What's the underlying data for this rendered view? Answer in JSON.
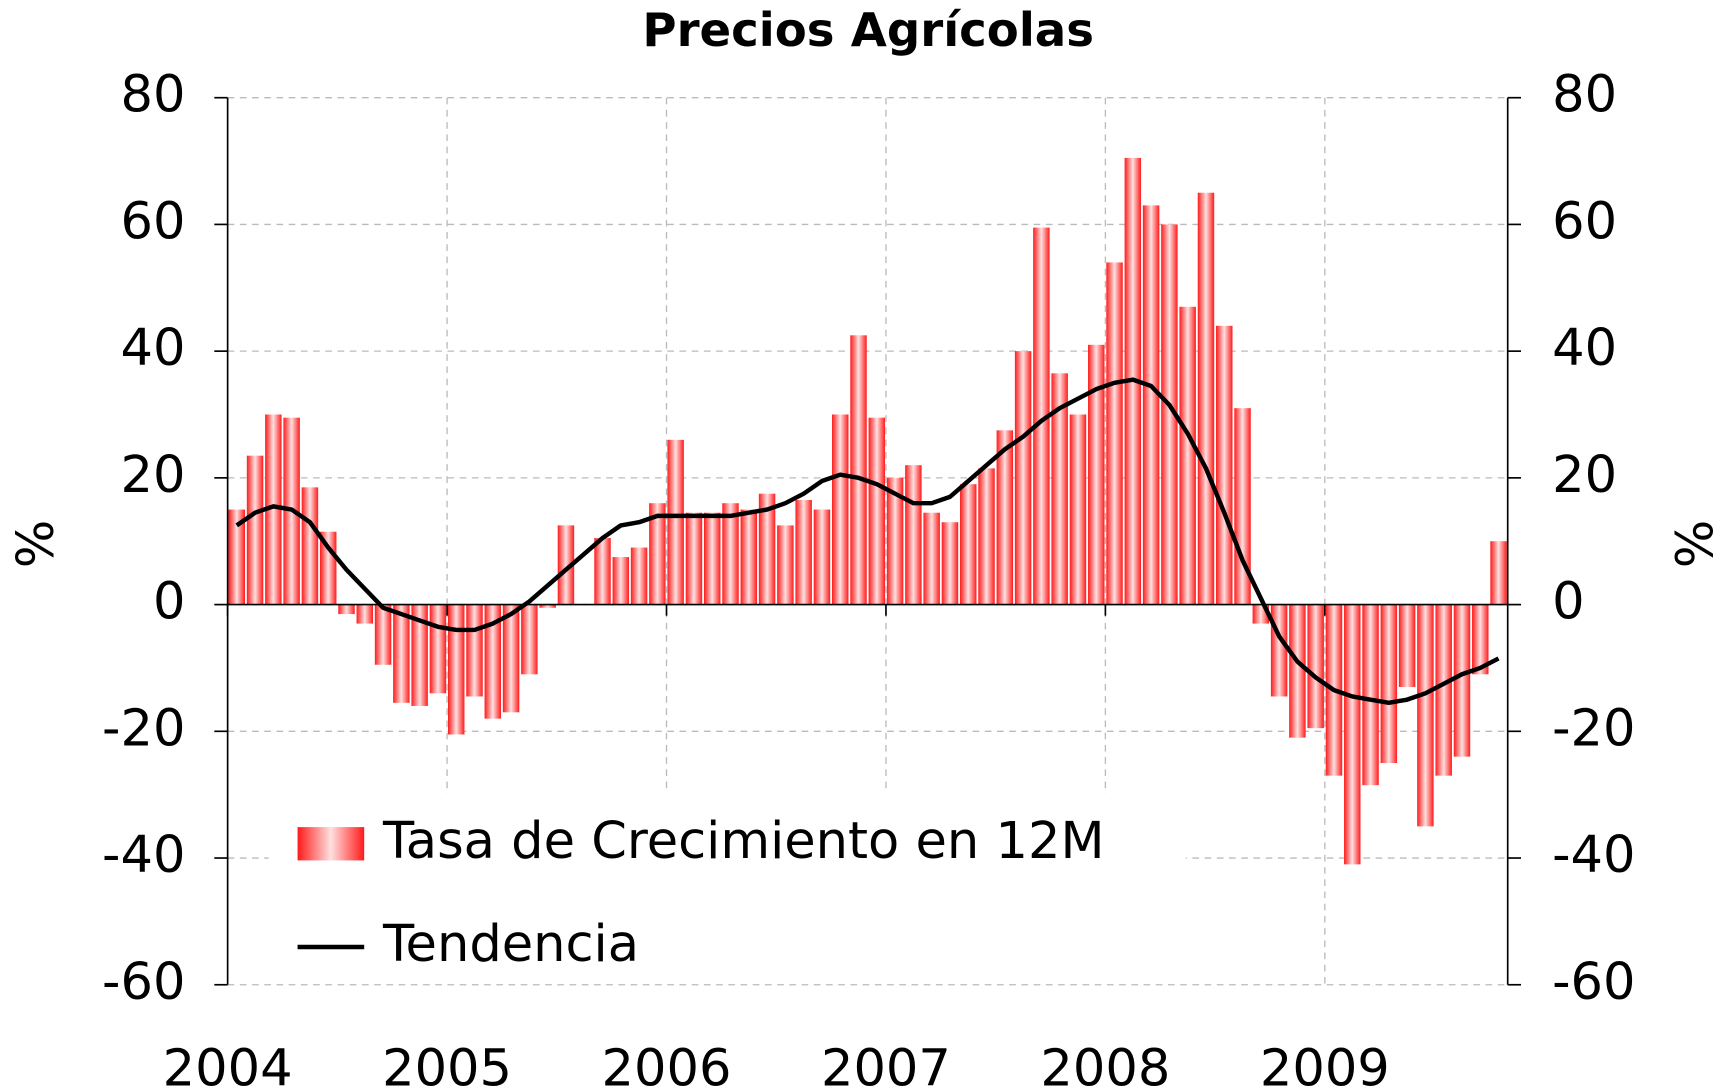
{
  "chart_data": {
    "type": "bar+line",
    "title": "Precios Agrícolas",
    "y_label": "%",
    "y2_label": "%",
    "categories": [
      "2004",
      null,
      null,
      null,
      null,
      null,
      null,
      null,
      null,
      null,
      null,
      null,
      "2005",
      null,
      null,
      null,
      null,
      null,
      null,
      null,
      null,
      null,
      null,
      null,
      "2006",
      null,
      null,
      null,
      null,
      null,
      null,
      null,
      null,
      null,
      null,
      null,
      "2007",
      null,
      null,
      null,
      null,
      null,
      null,
      null,
      null,
      null,
      null,
      null,
      "2008",
      null,
      null,
      null,
      null,
      null,
      null,
      null,
      null,
      null,
      null,
      null,
      "2009",
      null,
      null,
      null,
      null,
      null,
      null,
      null,
      null,
      null
    ],
    "series": [
      {
        "name": "Tasa de Crecimiento en 12M",
        "type": "bar",
        "color": "#ff0000",
        "values": [
          15,
          23.5,
          30,
          29.5,
          18.5,
          11.5,
          -1.5,
          -3,
          -9.5,
          -15.5,
          -16,
          -14,
          -20.5,
          -14.5,
          -18,
          -17,
          -11,
          -0.5,
          12.5,
          0,
          10.5,
          7.5,
          9,
          16,
          26,
          14.5,
          14.5,
          16,
          15,
          17.5,
          12.5,
          16.5,
          15,
          30,
          42.5,
          29.5,
          20,
          22,
          14.5,
          13,
          19,
          21.5,
          27.5,
          40,
          59.5,
          36.5,
          30,
          41,
          54,
          70.5,
          63,
          60,
          47,
          65,
          44,
          31,
          -3,
          -14.5,
          -21,
          -19.5,
          -27,
          -41,
          -28.5,
          -25,
          -13,
          -35,
          -27,
          -24,
          -11,
          10
        ]
      },
      {
        "name": "Tendencia",
        "type": "line",
        "color": "#000000",
        "values": [
          12.5,
          14.5,
          15.5,
          15,
          13,
          9,
          5.5,
          2.5,
          -0.5,
          -1.5,
          -2.5,
          -3.5,
          -4,
          -4,
          -3,
          -1.5,
          0.5,
          3,
          5.5,
          8,
          10.5,
          12.5,
          13,
          14,
          14,
          14,
          14,
          14,
          14.5,
          15,
          16,
          17.5,
          19.5,
          20.5,
          20,
          19,
          17.5,
          16,
          16,
          17,
          19.5,
          22,
          24.5,
          26.5,
          29,
          31,
          32.5,
          34,
          35,
          35.5,
          34.5,
          31.5,
          27,
          21.5,
          14.5,
          7,
          1,
          -5,
          -9,
          -11.5,
          -13.5,
          -14.5,
          -15,
          -15.5,
          -15,
          -14,
          -12.5,
          -11,
          -10,
          -8.5
        ]
      }
    ],
    "ylim": [
      -60,
      80
    ],
    "yticks": [
      -60,
      -40,
      -20,
      0,
      20,
      40,
      60,
      80
    ],
    "y2lim": [
      -60,
      80
    ],
    "y2ticks": [
      -60,
      -40,
      -20,
      0,
      20,
      40,
      60,
      80
    ],
    "grid": true,
    "legend": "lower left"
  }
}
